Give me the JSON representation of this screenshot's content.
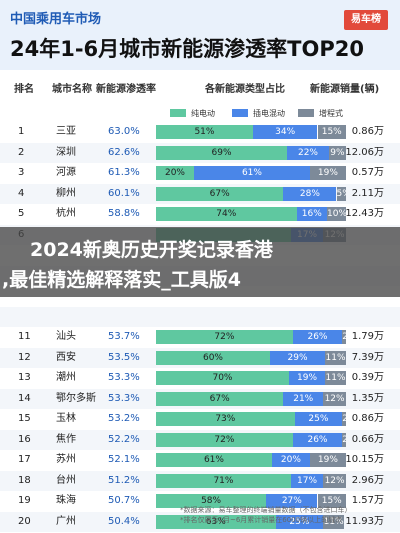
{
  "header": {
    "brand": "中国乘用车市场",
    "logo_text": "易车榜",
    "title": "24年1-6月城市新能源渗透率TOP20"
  },
  "columns": {
    "rank": "排名",
    "city": "城市名称",
    "penetration": "新能源渗透率",
    "mix": "各新能源类型占比",
    "sales": "新能源销量(辆)"
  },
  "legend": [
    "纯电动",
    "插电混动",
    "增程式"
  ],
  "colors": {
    "bev": "#5fc8a0",
    "phev": "#4a86e8",
    "erev": "#7d8a99",
    "accent": "#1f5bb5"
  },
  "chart_data": {
    "type": "table",
    "title": "24年1-6月城市新能源渗透率TOP20",
    "series_names": [
      "纯电动",
      "插电混动",
      "增程式"
    ],
    "rows": [
      {
        "rank": "1",
        "city": "三亚",
        "penetration": "63.0%",
        "mix": [
          51,
          34,
          15
        ],
        "mix_labels": [
          "51%",
          "34%",
          "15%"
        ],
        "sales": "0.86万"
      },
      {
        "rank": "2",
        "city": "深圳",
        "penetration": "62.6%",
        "mix": [
          69,
          22,
          9
        ],
        "mix_labels": [
          "69%",
          "22%",
          "9%"
        ],
        "sales": "12.06万"
      },
      {
        "rank": "3",
        "city": "河源",
        "penetration": "61.3%",
        "mix": [
          20,
          61,
          19
        ],
        "mix_labels": [
          "20%",
          "61%",
          "19%"
        ],
        "sales": "0.57万"
      },
      {
        "rank": "4",
        "city": "柳州",
        "penetration": "60.1%",
        "mix": [
          67,
          28,
          5
        ],
        "mix_labels": [
          "67%",
          "28%",
          "5%"
        ],
        "sales": "2.11万"
      },
      {
        "rank": "5",
        "city": "杭州",
        "penetration": "58.8%",
        "mix": [
          74,
          16,
          10
        ],
        "mix_labels": [
          "74%",
          "16%",
          "10%"
        ],
        "sales": "12.43万"
      },
      {
        "rank": "6",
        "city": "",
        "penetration": "",
        "mix": [
          71,
          17,
          12
        ],
        "mix_labels": [
          "",
          "17%",
          "12%"
        ],
        "sales": ""
      },
      {
        "rank": "",
        "city": "",
        "penetration": "",
        "mix": [],
        "mix_labels": [],
        "sales": ""
      },
      {
        "rank": "",
        "city": "",
        "penetration": "",
        "mix": [],
        "mix_labels": [],
        "sales": ""
      },
      {
        "rank": "",
        "city": "",
        "penetration": "",
        "mix": [],
        "mix_labels": [],
        "sales": ""
      },
      {
        "rank": "",
        "city": "",
        "penetration": "",
        "mix": [],
        "mix_labels": [],
        "sales": ""
      },
      {
        "rank": "11",
        "city": "汕头",
        "penetration": "53.7%",
        "mix": [
          72,
          26,
          2
        ],
        "mix_labels": [
          "72%",
          "26%",
          "2%"
        ],
        "sales": "1.79万"
      },
      {
        "rank": "12",
        "city": "西安",
        "penetration": "53.5%",
        "mix": [
          60,
          29,
          11
        ],
        "mix_labels": [
          "60%",
          "29%",
          "11%"
        ],
        "sales": "7.39万"
      },
      {
        "rank": "13",
        "city": "潮州",
        "penetration": "53.3%",
        "mix": [
          70,
          19,
          11
        ],
        "mix_labels": [
          "70%",
          "19%",
          "11%"
        ],
        "sales": "0.39万"
      },
      {
        "rank": "14",
        "city": "鄂尔多斯",
        "penetration": "53.3%",
        "mix": [
          67,
          21,
          12
        ],
        "mix_labels": [
          "67%",
          "21%",
          "12%"
        ],
        "sales": "1.35万"
      },
      {
        "rank": "15",
        "city": "玉林",
        "penetration": "53.2%",
        "mix": [
          73,
          25,
          2
        ],
        "mix_labels": [
          "73%",
          "25%",
          "2%"
        ],
        "sales": "0.86万"
      },
      {
        "rank": "16",
        "city": "焦作",
        "penetration": "52.2%",
        "mix": [
          72,
          26,
          2
        ],
        "mix_labels": [
          "72%",
          "26%",
          "2%"
        ],
        "sales": "0.66万"
      },
      {
        "rank": "17",
        "city": "苏州",
        "penetration": "52.1%",
        "mix": [
          61,
          20,
          19
        ],
        "mix_labels": [
          "61%",
          "20%",
          "19%"
        ],
        "sales": "10.15万"
      },
      {
        "rank": "18",
        "city": "台州",
        "penetration": "51.2%",
        "mix": [
          71,
          17,
          12
        ],
        "mix_labels": [
          "71%",
          "17%",
          "12%"
        ],
        "sales": "2.96万"
      },
      {
        "rank": "19",
        "city": "珠海",
        "penetration": "50.7%",
        "mix": [
          58,
          27,
          15
        ],
        "mix_labels": [
          "58%",
          "27%",
          "15%"
        ],
        "sales": "1.57万"
      },
      {
        "rank": "20",
        "city": "广州",
        "penetration": "50.4%",
        "mix": [
          63,
          25,
          11
        ],
        "mix_labels": [
          "63%",
          "25%",
          "11%"
        ],
        "sales": "11.93万"
      }
    ]
  },
  "banner": {
    "line1": "2024新奥历史开奖记录香港",
    "line2": ",最佳精选解释落实_工具版4"
  },
  "notes": {
    "line1": "*数据来源：易车整理的终端销量数据（不包含进口车）",
    "line2": "*排名仅展示1月~6月累计销量在6000辆以上的城市"
  }
}
